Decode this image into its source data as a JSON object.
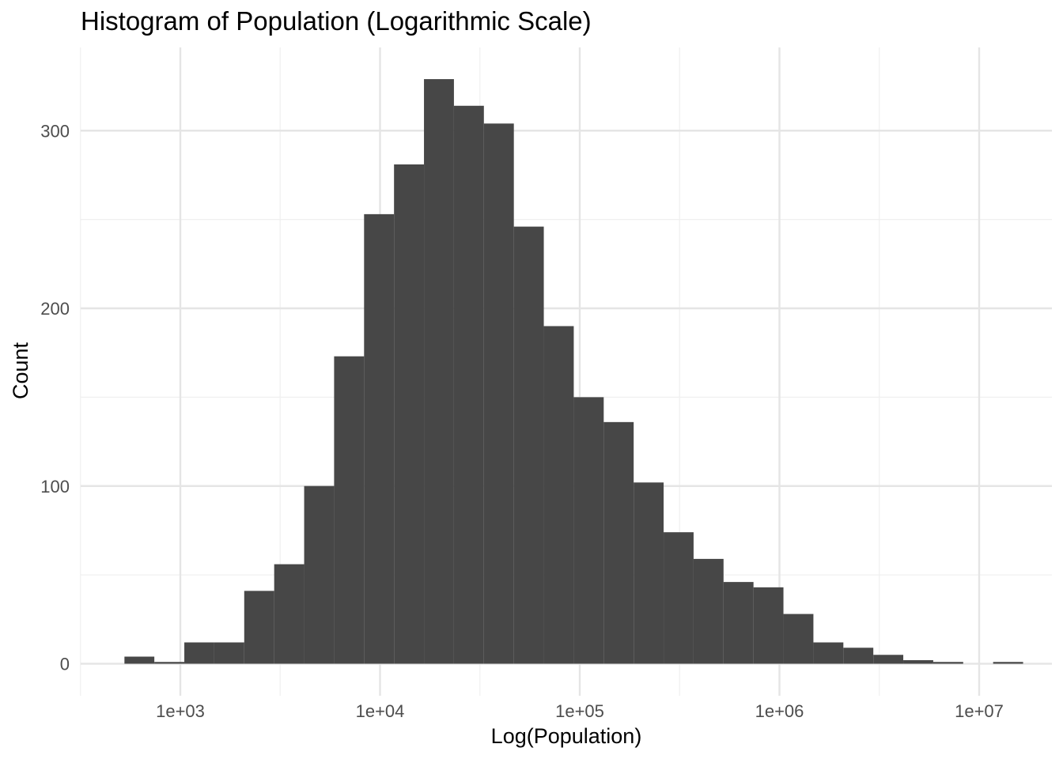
{
  "chart_data": {
    "type": "bar",
    "title": "Histogram of Population (Logarithmic Scale)",
    "xlabel": "Log(Population)",
    "ylabel": "Count",
    "x_scale": "log10",
    "xlim": [
      316,
      19953
    ],
    "ylim": [
      -12,
      336
    ],
    "x_ticks": [
      {
        "value": 1000,
        "label": "1e+03"
      },
      {
        "value": 10000,
        "label": "1e+04"
      },
      {
        "value": 100000,
        "label": "1e+05"
      },
      {
        "value": 1000000,
        "label": "1e+06"
      },
      {
        "value": 10000000,
        "label": "1e+07"
      }
    ],
    "y_ticks": [
      {
        "value": 0,
        "label": "0"
      },
      {
        "value": 100,
        "label": "100"
      },
      {
        "value": 200,
        "label": "200"
      },
      {
        "value": 300,
        "label": "300"
      }
    ],
    "grid": true,
    "bar_color": "#474747",
    "bins": [
      {
        "x_start": 525,
        "x_end": 741,
        "count": 4
      },
      {
        "x_start": 741,
        "x_end": 1047,
        "count": 1
      },
      {
        "x_start": 1047,
        "x_end": 1479,
        "count": 12
      },
      {
        "x_start": 1479,
        "x_end": 2089,
        "count": 12
      },
      {
        "x_start": 2089,
        "x_end": 2951,
        "count": 41
      },
      {
        "x_start": 2951,
        "x_end": 4169,
        "count": 56
      },
      {
        "x_start": 4169,
        "x_end": 5888,
        "count": 100
      },
      {
        "x_start": 5888,
        "x_end": 8318,
        "count": 173
      },
      {
        "x_start": 8318,
        "x_end": 11749,
        "count": 253
      },
      {
        "x_start": 11749,
        "x_end": 16596,
        "count": 281
      },
      {
        "x_start": 16596,
        "x_end": 23442,
        "count": 329
      },
      {
        "x_start": 23442,
        "x_end": 33113,
        "count": 314
      },
      {
        "x_start": 33113,
        "x_end": 46774,
        "count": 304
      },
      {
        "x_start": 46774,
        "x_end": 66069,
        "count": 246
      },
      {
        "x_start": 66069,
        "x_end": 93325,
        "count": 190
      },
      {
        "x_start": 93325,
        "x_end": 131826,
        "count": 150
      },
      {
        "x_start": 131826,
        "x_end": 186209,
        "count": 136
      },
      {
        "x_start": 186209,
        "x_end": 263027,
        "count": 102
      },
      {
        "x_start": 263027,
        "x_end": 371535,
        "count": 74
      },
      {
        "x_start": 371535,
        "x_end": 524807,
        "count": 59
      },
      {
        "x_start": 524807,
        "x_end": 741310,
        "count": 46
      },
      {
        "x_start": 741310,
        "x_end": 1047129,
        "count": 43
      },
      {
        "x_start": 1047129,
        "x_end": 1479108,
        "count": 28
      },
      {
        "x_start": 1479108,
        "x_end": 2089296,
        "count": 12
      },
      {
        "x_start": 2089296,
        "x_end": 2951209,
        "count": 9
      },
      {
        "x_start": 2951209,
        "x_end": 4168694,
        "count": 5
      },
      {
        "x_start": 4168694,
        "x_end": 5888437,
        "count": 2
      },
      {
        "x_start": 5888437,
        "x_end": 8317638,
        "count": 1
      },
      {
        "x_start": 8317638,
        "x_end": 11748976,
        "count": 0
      },
      {
        "x_start": 11748976,
        "x_end": 16595869,
        "count": 1
      }
    ]
  }
}
